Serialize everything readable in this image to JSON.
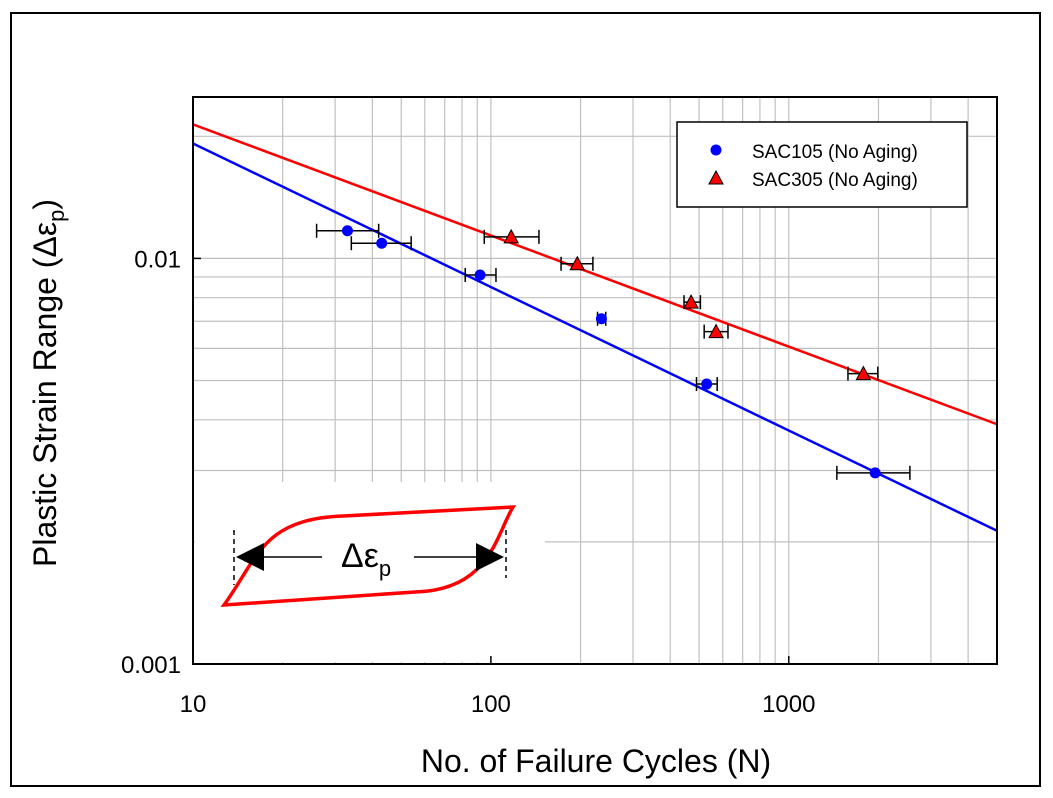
{
  "chart_data": {
    "type": "scatter",
    "xscale": "log",
    "yscale": "log",
    "xlim": [
      10,
      5000
    ],
    "ylim": [
      0.001,
      0.025
    ],
    "xlabel": "No. of Failure Cycles (N)",
    "ylabel": "Plastic Strain Range (Δε",
    "ylabel_sub": "p",
    "ylabel_close": ")",
    "grid": true,
    "legend_position": "top-right",
    "x_ticks": [
      {
        "value": 10,
        "label": "10"
      },
      {
        "value": 100,
        "label": "100"
      },
      {
        "value": 1000,
        "label": "1000"
      }
    ],
    "y_ticks": [
      {
        "value": 0.001,
        "label": "0.001"
      },
      {
        "value": 0.01,
        "label": "0.01"
      }
    ],
    "series": [
      {
        "name": "SAC105 (No Aging)",
        "marker": "circle",
        "color": "#0000ff",
        "points": [
          {
            "x": 33,
            "y": 0.0117,
            "xerr": [
              26,
              42
            ]
          },
          {
            "x": 43,
            "y": 0.0109,
            "xerr": [
              34,
              54
            ]
          },
          {
            "x": 92,
            "y": 0.0091,
            "xerr": [
              82,
              104
            ]
          },
          {
            "x": 235,
            "y": 0.0071,
            "xerr": [
              228,
              243
            ]
          },
          {
            "x": 530,
            "y": 0.0049,
            "xerr": [
              490,
              575
            ]
          },
          {
            "x": 1950,
            "y": 0.00296,
            "xerr": [
              1450,
              2550
            ]
          }
        ],
        "fit": [
          [
            10,
            0.0192
          ],
          [
            5000,
            0.00213
          ]
        ]
      },
      {
        "name": "SAC305 (No Aging)",
        "marker": "triangle",
        "color": "#ff0000",
        "points": [
          {
            "x": 117,
            "y": 0.0113,
            "xerr": [
              95,
              145
            ]
          },
          {
            "x": 195,
            "y": 0.0097,
            "xerr": [
              172,
              220
            ]
          },
          {
            "x": 470,
            "y": 0.0078,
            "xerr": [
              445,
              505
            ]
          },
          {
            "x": 570,
            "y": 0.0066,
            "xerr": [
              520,
              625
            ]
          },
          {
            "x": 1780,
            "y": 0.0052,
            "xerr": [
              1580,
              1990
            ]
          }
        ],
        "fit": [
          [
            10,
            0.0214
          ],
          [
            5000,
            0.0039
          ]
        ]
      }
    ],
    "inset": {
      "label": "Δε",
      "label_sub": "p"
    }
  },
  "colors": {
    "sac105": "#0000ff",
    "sac305": "#ff0000",
    "grid": "#c0c0c0"
  }
}
